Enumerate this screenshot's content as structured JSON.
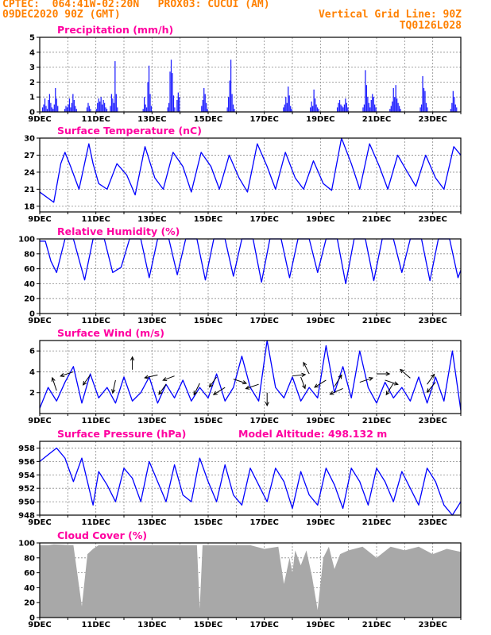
{
  "header": {
    "line1": "CPTEC:  064:41W-02:20N   PROX03: CUCUI (AM)",
    "line2": "09DEC2020 90Z (GMT)",
    "grid_note": "Vertical Grid Line: 90Z",
    "run_code": "TQ0126L028"
  },
  "colors": {
    "line": "#0000ff",
    "bars": "#1f1fff",
    "cloud": "#a8a8a8",
    "title": "#ff00a0",
    "header": "#ff8000"
  },
  "date_labels": [
    "9DEC",
    "11DEC",
    "13DEC",
    "15DEC",
    "17DEC",
    "19DEC",
    "21DEC",
    "23DEC"
  ],
  "chart_data": [
    {
      "type": "bar",
      "title": "Precipitation (mm/h)",
      "ylim": [
        0,
        5
      ],
      "yticks": [
        0,
        1,
        2,
        3,
        4,
        5
      ],
      "days": 15,
      "series": [
        {
          "values": [
            0,
            0,
            0.3,
            0.5,
            0.9,
            0.4,
            0.2,
            0.8,
            1.2,
            0.6,
            0.3,
            0.2,
            0.5,
            1.6,
            0.9,
            0.4,
            0,
            0,
            0,
            0,
            0,
            0.2,
            0.4,
            0.3,
            0.5,
            0.9,
            0.3,
            0.6,
            1.2,
            0.8,
            0.4,
            0.2,
            0,
            0,
            0,
            0,
            0,
            0,
            0,
            0,
            0.3,
            0.6,
            0.4,
            0.2,
            0,
            0,
            0,
            0,
            0.2,
            0.6,
            0.9,
            0.7,
            1.0,
            0.5,
            0.8,
            0.6,
            0.3,
            0.2,
            0,
            0,
            0.4,
            1.2,
            0.9,
            0.6,
            3.4,
            1.2,
            0.3,
            0,
            0,
            0,
            0,
            0,
            0,
            0,
            0,
            0,
            0,
            0,
            0,
            0,
            0,
            0,
            0,
            0,
            0,
            0,
            0,
            0,
            0.2,
            1.0,
            0.5,
            0.3,
            2.0,
            3.1,
            1.2,
            0.4,
            0,
            0,
            0,
            0,
            0,
            0,
            0,
            0,
            0,
            0,
            0,
            0,
            0,
            0.3,
            0.6,
            2.7,
            3.5,
            2.6,
            1.1,
            0.3,
            0,
            0.8,
            1.3,
            1.0,
            0,
            0,
            0,
            0,
            0,
            0,
            0,
            0,
            0,
            0,
            0,
            0,
            0,
            0,
            0,
            0,
            0,
            0,
            0.4,
            0.8,
            1.6,
            1.2,
            0.6,
            0.2,
            0,
            0,
            0,
            0,
            0,
            0,
            0,
            0,
            0,
            0,
            0,
            0,
            0,
            0,
            0,
            0,
            0.3,
            1.0,
            2.1,
            3.5,
            1.2,
            0.5,
            0.2,
            0,
            0,
            0,
            0,
            0,
            0,
            0,
            0,
            0,
            0,
            0,
            0,
            0,
            0,
            0,
            0,
            0,
            0,
            0,
            0,
            0,
            0,
            0,
            0,
            0,
            0,
            0,
            0,
            0,
            0,
            0,
            0,
            0,
            0,
            0,
            0,
            0,
            0,
            0,
            0,
            0,
            0.3,
            0.5,
            1.0,
            0.6,
            1.7,
            1.1,
            0.4,
            0.2,
            0,
            0,
            0,
            0,
            0,
            0,
            0,
            0,
            0,
            0,
            0,
            0,
            0,
            0,
            0,
            0.3,
            0.7,
            0.4,
            1.5,
            0.9,
            0.5,
            0.3,
            0.2,
            0,
            0,
            0,
            0,
            0,
            0,
            0,
            0,
            0,
            0,
            0,
            0,
            0,
            0,
            0,
            0.3,
            0.6,
            0.8,
            0.5,
            0.4,
            0.3,
            0.5,
            0.9,
            0.6,
            0.3,
            0,
            0,
            0,
            0,
            0,
            0,
            0,
            0,
            0,
            0,
            0,
            0,
            0.3,
            0.5,
            2.8,
            1.8,
            1.0,
            0.6,
            0.3,
            0.8,
            1.2,
            1.0,
            0.5,
            0.3,
            0,
            0,
            0,
            0,
            0,
            0,
            0,
            0,
            0,
            0,
            0,
            0.2,
            0.4,
            0.7,
            1.6,
            1.0,
            1.8,
            0.9,
            0.6,
            0.4,
            0.2,
            0,
            0,
            0,
            0,
            0,
            0,
            0,
            0,
            0,
            0,
            0,
            0,
            0,
            0,
            0,
            0,
            0.3,
            0.5,
            2.4,
            1.6,
            1.4,
            0.6,
            0.3,
            0,
            0,
            0,
            0,
            0,
            0,
            0,
            0,
            0,
            0,
            0,
            0,
            0,
            0,
            0,
            0,
            0,
            0,
            0,
            0.2,
            0.6,
            1.4,
            1.0,
            0.5,
            0.3,
            0,
            0,
            0
          ]
        }
      ]
    },
    {
      "type": "line",
      "title": "Surface Temperature (nC)",
      "ylim": [
        17,
        30
      ],
      "yticks": [
        18,
        21,
        24,
        27,
        30
      ],
      "days": 15,
      "series": [
        {
          "x": [
            0,
            0.5,
            0.75,
            0.9,
            1.1,
            1.4,
            1.75,
            1.9,
            2.1,
            2.4,
            2.75,
            3.1,
            3.4,
            3.75,
            4.1,
            4.4,
            4.75,
            5.1,
            5.4,
            5.75,
            6.1,
            6.4,
            6.75,
            7.1,
            7.4,
            7.75,
            8.1,
            8.4,
            8.75,
            9.1,
            9.4,
            9.75,
            10.1,
            10.4,
            10.75,
            11.1,
            11.4,
            11.75,
            12.1,
            12.4,
            12.75,
            13.1,
            13.4,
            13.75,
            14.1,
            14.4,
            14.75,
            15
          ],
          "y": [
            20.5,
            18.7,
            25.5,
            27.5,
            25,
            21,
            29,
            25.5,
            22,
            21,
            25.5,
            23.5,
            20,
            28.5,
            23,
            21,
            27.5,
            25,
            20.5,
            27.5,
            25,
            21,
            27,
            23,
            20.5,
            29,
            25,
            21,
            27.5,
            23,
            21,
            26,
            22,
            20.8,
            30,
            25.5,
            21,
            29,
            25,
            21,
            27,
            24,
            21.5,
            27,
            23,
            21,
            28.5,
            27
          ]
        }
      ]
    },
    {
      "type": "line",
      "title": "Relative Humidity (%)",
      "ylim": [
        0,
        100
      ],
      "yticks": [
        0,
        20,
        40,
        60,
        80,
        100
      ],
      "days": 15,
      "series": [
        {
          "x": [
            0,
            0.2,
            0.4,
            0.6,
            0.9,
            1.2,
            1.6,
            1.9,
            2.3,
            2.6,
            2.9,
            3.2,
            3.6,
            3.9,
            4.2,
            4.6,
            4.9,
            5.2,
            5.6,
            5.9,
            6.2,
            6.6,
            6.9,
            7.2,
            7.6,
            7.9,
            8.2,
            8.6,
            8.9,
            9.2,
            9.6,
            9.9,
            10.2,
            10.6,
            10.9,
            11.2,
            11.6,
            11.9,
            12.2,
            12.6,
            12.9,
            13.2,
            13.6,
            13.9,
            14.2,
            14.6,
            14.9,
            15
          ],
          "y": [
            97,
            97,
            70,
            55,
            100,
            100,
            45,
            100,
            100,
            55,
            62,
            100,
            100,
            48,
            100,
            100,
            52,
            100,
            100,
            45,
            100,
            100,
            50,
            100,
            100,
            42,
            100,
            100,
            48,
            100,
            100,
            55,
            100,
            100,
            40,
            100,
            100,
            44,
            100,
            100,
            55,
            100,
            100,
            44,
            100,
            100,
            48,
            58
          ]
        }
      ]
    },
    {
      "type": "line",
      "title": "Surface Wind (m/s)",
      "ylim": [
        0,
        7
      ],
      "yticks": [
        2,
        4,
        6
      ],
      "days": 15,
      "series": [
        {
          "x": [
            0,
            0.3,
            0.6,
            0.9,
            1.2,
            1.5,
            1.8,
            2.1,
            2.4,
            2.7,
            3.0,
            3.3,
            3.6,
            3.9,
            4.2,
            4.5,
            4.8,
            5.1,
            5.4,
            5.7,
            6.0,
            6.3,
            6.6,
            6.9,
            7.2,
            7.5,
            7.8,
            8.1,
            8.4,
            8.7,
            9.0,
            9.3,
            9.6,
            9.9,
            10.2,
            10.5,
            10.8,
            11.1,
            11.4,
            11.7,
            12.0,
            12.3,
            12.6,
            12.9,
            13.2,
            13.5,
            13.8,
            14.1,
            14.4,
            14.7,
            15
          ],
          "y": [
            0.5,
            2.5,
            1.2,
            3.0,
            4.5,
            1.0,
            3.8,
            1.5,
            2.5,
            1.0,
            3.5,
            1.2,
            2.0,
            3.5,
            1.0,
            2.8,
            1.5,
            3.2,
            1.2,
            2.5,
            1.5,
            3.8,
            1.2,
            2.5,
            5.5,
            2.5,
            1.2,
            7.0,
            2.5,
            1.5,
            3.5,
            1.2,
            2.5,
            1.5,
            6.5,
            2.0,
            4.5,
            1.5,
            6.0,
            2.5,
            1.0,
            3.0,
            1.5,
            2.5,
            1.2,
            3.5,
            1.0,
            3.5,
            1.2,
            6.0,
            0.3
          ]
        }
      ],
      "vectors": [
        {
          "x": 0.6,
          "y": 2.2,
          "u": -0.3,
          "v": 0.9
        },
        {
          "x": 1.2,
          "y": 4.0,
          "u": -0.9,
          "v": -0.3
        },
        {
          "x": 1.8,
          "y": 3.7,
          "u": -0.5,
          "v": -0.7
        },
        {
          "x": 2.7,
          "y": 3.2,
          "u": -0.2,
          "v": -0.9
        },
        {
          "x": 3.3,
          "y": 4.2,
          "u": 0.0,
          "v": 0.9
        },
        {
          "x": 4.2,
          "y": 3.7,
          "u": -0.9,
          "v": -0.2
        },
        {
          "x": 4.5,
          "y": 2.8,
          "u": -0.5,
          "v": -0.7
        },
        {
          "x": 4.8,
          "y": 3.6,
          "u": -0.8,
          "v": -0.3
        },
        {
          "x": 5.7,
          "y": 2.9,
          "u": -0.4,
          "v": -0.8
        },
        {
          "x": 6.3,
          "y": 3.5,
          "u": -0.5,
          "v": -0.7
        },
        {
          "x": 6.6,
          "y": 2.5,
          "u": -0.8,
          "v": -0.5
        },
        {
          "x": 6.9,
          "y": 3.3,
          "u": 0.9,
          "v": -0.3
        },
        {
          "x": 7.8,
          "y": 2.8,
          "u": -0.9,
          "v": -0.3
        },
        {
          "x": 8.1,
          "y": 2.0,
          "u": 0.0,
          "v": -0.9
        },
        {
          "x": 9.0,
          "y": 3.6,
          "u": 0.9,
          "v": 0.1
        },
        {
          "x": 9.3,
          "y": 3.5,
          "u": 0.3,
          "v": -0.8
        },
        {
          "x": 9.6,
          "y": 3.8,
          "u": -0.4,
          "v": 0.8
        },
        {
          "x": 10.2,
          "y": 3.2,
          "u": -0.8,
          "v": -0.5
        },
        {
          "x": 10.5,
          "y": 2.6,
          "u": 0.5,
          "v": 0.8
        },
        {
          "x": 10.8,
          "y": 2.4,
          "u": -0.9,
          "v": -0.4
        },
        {
          "x": 11.4,
          "y": 3.0,
          "u": 0.9,
          "v": 0.3
        },
        {
          "x": 12.0,
          "y": 3.8,
          "u": 0.9,
          "v": 0.0
        },
        {
          "x": 12.3,
          "y": 3.2,
          "u": 0.9,
          "v": -0.3
        },
        {
          "x": 12.6,
          "y": 2.9,
          "u": -0.5,
          "v": -0.8
        },
        {
          "x": 13.2,
          "y": 3.4,
          "u": -0.7,
          "v": 0.6
        },
        {
          "x": 13.8,
          "y": 2.8,
          "u": 0.5,
          "v": 0.7
        },
        {
          "x": 14.1,
          "y": 3.0,
          "u": -0.6,
          "v": -0.7
        }
      ]
    },
    {
      "type": "line",
      "title": "Surface Pressure (hPa)",
      "model_altitude": "Model Altitude: 498.132 m",
      "ylim": [
        948,
        959
      ],
      "yticks": [
        948,
        950,
        952,
        954,
        956,
        958
      ],
      "days": 15,
      "series": [
        {
          "x": [
            0,
            0.3,
            0.6,
            0.9,
            1.2,
            1.5,
            1.9,
            2.1,
            2.4,
            2.7,
            3.0,
            3.3,
            3.6,
            3.9,
            4.2,
            4.5,
            4.8,
            5.1,
            5.4,
            5.7,
            6.0,
            6.3,
            6.6,
            6.9,
            7.2,
            7.5,
            7.8,
            8.1,
            8.4,
            8.7,
            9.0,
            9.3,
            9.6,
            9.9,
            10.2,
            10.5,
            10.8,
            11.1,
            11.4,
            11.7,
            12.0,
            12.3,
            12.6,
            12.9,
            13.2,
            13.5,
            13.8,
            14.1,
            14.4,
            14.7,
            15
          ],
          "y": [
            956,
            957,
            958,
            956.5,
            953,
            956.5,
            949.5,
            954.5,
            952.5,
            950,
            955,
            953.5,
            950,
            956,
            953,
            950,
            955.5,
            951,
            950,
            956.5,
            953,
            950,
            955.5,
            951,
            949.5,
            955,
            952.5,
            950,
            955,
            953,
            949,
            954.5,
            951,
            949.5,
            955,
            952.5,
            949,
            955,
            953,
            949.5,
            955,
            953,
            950,
            954.5,
            952,
            949.5,
            955,
            953,
            949.5,
            948,
            950
          ]
        }
      ]
    },
    {
      "type": "area",
      "title": "Cloud Cover (%)",
      "ylim": [
        0,
        100
      ],
      "yticks": [
        0,
        20,
        40,
        60,
        80,
        100
      ],
      "days": 15,
      "series": [
        {
          "x": [
            0,
            0.3,
            0.5,
            1.2,
            1.5,
            1.7,
            1.9,
            2.1,
            3.0,
            4.5,
            5.6,
            5.7,
            5.8,
            6.5,
            7.5,
            8.0,
            8.5,
            8.7,
            8.9,
            9.0,
            9.1,
            9.3,
            9.5,
            9.7,
            9.9,
            10.1,
            10.3,
            10.5,
            10.7,
            11.0,
            11.5,
            12.0,
            12.5,
            13.0,
            13.5,
            14.0,
            14.5,
            15
          ],
          "y": [
            97,
            97,
            98,
            97,
            15,
            85,
            92,
            97,
            97,
            97,
            97,
            12,
            97,
            97,
            97,
            92,
            95,
            45,
            80,
            60,
            90,
            70,
            90,
            55,
            10,
            80,
            95,
            65,
            85,
            90,
            95,
            80,
            95,
            90,
            95,
            85,
            92,
            88
          ]
        }
      ]
    }
  ]
}
